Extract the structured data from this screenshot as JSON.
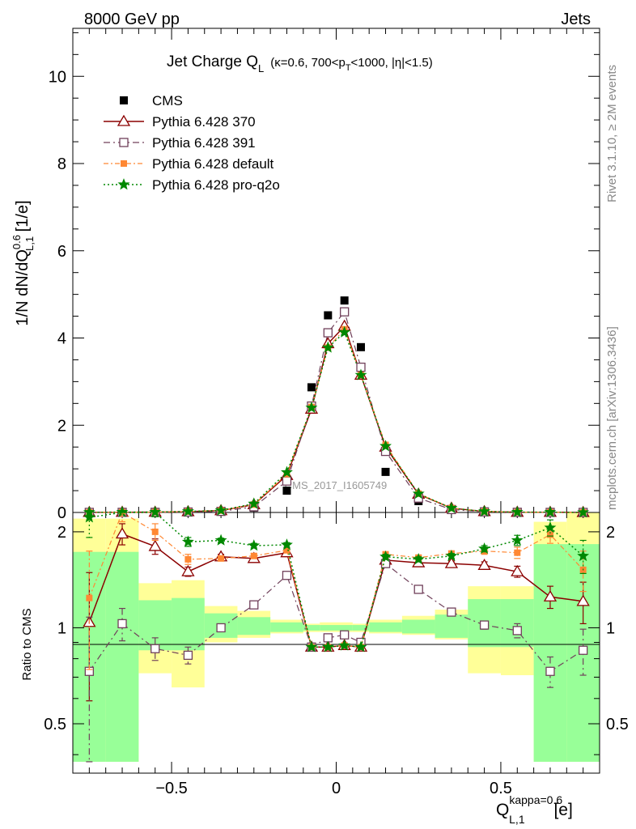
{
  "header": {
    "left": "8000 GeV pp",
    "right": "Jets",
    "side_top": "Rivet 3.1.10, ≥ 2M events",
    "side_bottom": "mcplots.cern.ch [arXiv:1306.3436]"
  },
  "title": {
    "main": "Jet Charge Q",
    "main_sub": "L",
    "cond_a": "(κ=0.6, 700<p",
    "cond_sub": "T",
    "cond_b": "<1000, |η|<1.5)"
  },
  "watermark": "CMS_2017_I1605749",
  "axes": {
    "y_main": {
      "base": "1/N dN/dQ",
      "sup": "0.6",
      "sub": "L,1",
      "unit": " [1/e]"
    },
    "y_ratio": "Ratio to CMS",
    "x": {
      "base": "Q",
      "sup": "kappa=0.6",
      "sub": "L,1",
      "unit": " [e]"
    }
  },
  "colors": {
    "cms": "#000000",
    "p370": "#8b0000",
    "p391": "#70405a",
    "pdefault": "#ff8833",
    "pq2o": "#008800",
    "band_inner": "#98ff98",
    "band_outer": "#ffff98"
  },
  "chart_data": {
    "type": "scatter",
    "x": [
      -0.75,
      -0.65,
      -0.55,
      -0.45,
      -0.35,
      -0.25,
      -0.15,
      -0.075,
      -0.025,
      0.025,
      0.075,
      0.15,
      0.25,
      0.35,
      0.45,
      0.55,
      0.65,
      0.75
    ],
    "bin_edges": [
      -0.8,
      -0.7,
      -0.6,
      -0.5,
      -0.4,
      -0.3,
      -0.2,
      -0.1,
      -0.05,
      0.0,
      0.05,
      0.1,
      0.2,
      0.3,
      0.4,
      0.5,
      0.6,
      0.7,
      0.8
    ],
    "xlim": [
      -0.8,
      0.8
    ],
    "ylim": [
      0,
      11.1
    ],
    "ratio_ylim": [
      0.35,
      2.3
    ],
    "y_ticks": [
      "0",
      "2",
      "4",
      "6",
      "8",
      "10"
    ],
    "ratio_ticks": [
      "0.5",
      "1",
      "2"
    ],
    "x_ticks": [
      "−0.5",
      "0",
      "0.5"
    ],
    "series": [
      {
        "name": "CMS",
        "key": "cms",
        "values": [
          0.002,
          0.003,
          0.004,
          0.012,
          0.025,
          0.11,
          0.5,
          2.87,
          4.52,
          4.86,
          3.79,
          0.93,
          0.26,
          0.06,
          0.013,
          0.004,
          0.003,
          0.001
        ]
      },
      {
        "name": "Pythia 6.428 370",
        "key": "p370",
        "values": [
          0.002,
          0.006,
          0.0072,
          0.018,
          0.042,
          0.18,
          0.85,
          2.37,
          3.87,
          4.27,
          3.15,
          1.5,
          0.42,
          0.098,
          0.021,
          0.006,
          0.004,
          0.001
        ],
        "ratio": [
          1.04,
          1.97,
          1.8,
          1.5,
          1.67,
          1.65,
          1.72,
          0.87,
          0.87,
          0.88,
          0.87,
          1.63,
          1.6,
          1.59,
          1.57,
          1.5,
          1.25,
          1.21
        ],
        "ratio_err": [
          0.45,
          0.15,
          0.1,
          0.05,
          0.03,
          0.03,
          0.03,
          0.01,
          0.01,
          0.01,
          0.01,
          0.03,
          0.03,
          0.03,
          0.04,
          0.06,
          0.1,
          0.18
        ]
      },
      {
        "name": "Pythia 6.428 391",
        "key": "p391",
        "values": [
          0.0015,
          0.003,
          0.0034,
          0.01,
          0.025,
          0.13,
          0.72,
          2.44,
          4.12,
          4.6,
          3.33,
          1.4,
          0.33,
          0.067,
          0.014,
          0.004,
          0.002,
          0.001
        ],
        "ratio": [
          0.73,
          1.03,
          0.86,
          0.82,
          1.0,
          1.18,
          1.46,
          0.87,
          0.93,
          0.95,
          0.9,
          1.59,
          1.32,
          1.12,
          1.02,
          0.98,
          0.73,
          0.85
        ],
        "ratio_err": [
          0.35,
          0.12,
          0.07,
          0.05,
          0.02,
          0.02,
          0.02,
          0.01,
          0.01,
          0.01,
          0.01,
          0.03,
          0.02,
          0.02,
          0.03,
          0.05,
          0.08,
          0.14
        ]
      },
      {
        "name": "Pythia 6.428 default",
        "key": "pdefault",
        "values": [
          0.002,
          0.007,
          0.0082,
          0.02,
          0.042,
          0.18,
          0.88,
          2.42,
          3.78,
          4.2,
          3.15,
          1.55,
          0.43,
          0.1,
          0.022,
          0.007,
          0.006,
          0.001
        ],
        "ratio": [
          1.24,
          2.35,
          2.0,
          1.64,
          1.65,
          1.68,
          1.75,
          0.87,
          0.87,
          0.88,
          0.87,
          1.7,
          1.66,
          1.71,
          1.74,
          1.72,
          1.96,
          1.52
        ],
        "ratio_err": [
          0.5,
          0.2,
          0.12,
          0.06,
          0.03,
          0.03,
          0.03,
          0.01,
          0.01,
          0.01,
          0.01,
          0.03,
          0.03,
          0.03,
          0.04,
          0.07,
          0.12,
          0.22
        ]
      },
      {
        "name": "Pythia 6.428 pro-q2o",
        "key": "pq2o",
        "values": [
          0.0045,
          0.008,
          0.0092,
          0.024,
          0.048,
          0.2,
          0.92,
          2.4,
          3.78,
          4.13,
          3.15,
          1.52,
          0.43,
          0.101,
          0.024,
          0.0082,
          0.006,
          0.002
        ],
        "ratio": [
          2.22,
          2.6,
          2.35,
          1.86,
          1.88,
          1.81,
          1.82,
          0.87,
          0.87,
          0.88,
          0.87,
          1.67,
          1.64,
          1.68,
          1.77,
          1.88,
          2.06,
          1.68
        ],
        "ratio_err": [
          0.3,
          0.2,
          0.12,
          0.06,
          0.03,
          0.03,
          0.03,
          0.01,
          0.01,
          0.01,
          0.01,
          0.03,
          0.03,
          0.03,
          0.04,
          0.07,
          0.12,
          0.2
        ]
      }
    ],
    "band_inner": [
      [
        0.38,
        1.73
      ],
      [
        0.38,
        1.73
      ],
      [
        0.85,
        1.22
      ],
      [
        0.85,
        1.24
      ],
      [
        0.93,
        1.11
      ],
      [
        0.95,
        1.08
      ],
      [
        0.97,
        1.04
      ],
      [
        0.98,
        1.02
      ],
      [
        0.98,
        1.02
      ],
      [
        0.98,
        1.02
      ],
      [
        0.98,
        1.02
      ],
      [
        0.97,
        1.04
      ],
      [
        0.96,
        1.06
      ],
      [
        0.93,
        1.1
      ],
      [
        0.87,
        1.23
      ],
      [
        0.87,
        1.23
      ],
      [
        0.38,
        1.83
      ],
      [
        0.38,
        1.83
      ]
    ],
    "band_outer": [
      [
        0.38,
        2.2
      ],
      [
        0.38,
        2.2
      ],
      [
        0.72,
        1.38
      ],
      [
        0.65,
        1.41
      ],
      [
        0.9,
        1.17
      ],
      [
        0.93,
        1.13
      ],
      [
        0.96,
        1.06
      ],
      [
        0.97,
        1.03
      ],
      [
        0.97,
        1.04
      ],
      [
        0.97,
        1.04
      ],
      [
        0.97,
        1.03
      ],
      [
        0.96,
        1.06
      ],
      [
        0.95,
        1.09
      ],
      [
        0.92,
        1.14
      ],
      [
        0.72,
        1.35
      ],
      [
        0.71,
        1.35
      ],
      [
        0.38,
        2.15
      ],
      [
        0.38,
        2.3
      ]
    ]
  }
}
